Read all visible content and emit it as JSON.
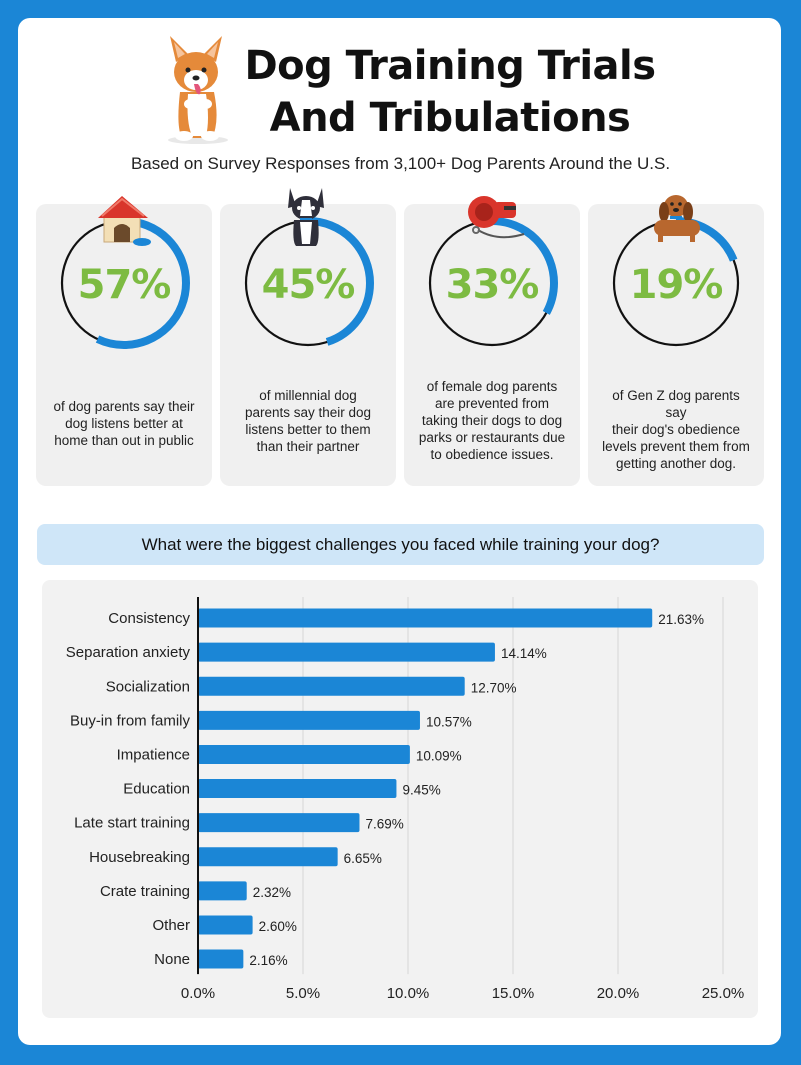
{
  "header": {
    "title_line1": "Dog Training Trials",
    "title_line2": "And Tribulations",
    "subtitle": "Based on Survey Responses from 3,100+ Dog Parents Around the U.S."
  },
  "stats": [
    {
      "value": "57%",
      "fraction": 0.57,
      "icon": "doghouse-icon",
      "desc": [
        "of dog parents say their",
        "dog listens better at",
        "home than out in public"
      ]
    },
    {
      "value": "45%",
      "fraction": 0.45,
      "icon": "boston-terrier-icon",
      "desc": [
        "of millennial dog",
        "parents say their dog",
        "listens better to them",
        "than their partner"
      ]
    },
    {
      "value": "33%",
      "fraction": 0.33,
      "icon": "leash-icon",
      "desc": [
        "of female dog parents",
        "are prevented from",
        "taking their dogs to dog",
        "parks or restaurants due",
        "to obedience issues."
      ]
    },
    {
      "value": "19%",
      "fraction": 0.19,
      "icon": "dachshund-icon",
      "desc": [
        "of Gen Z dog parents say",
        "their dog's obedience",
        "levels prevent them from",
        "getting another dog."
      ]
    }
  ],
  "colors": {
    "accent_blue": "#1b86d6",
    "stat_green": "#7dbb42",
    "question_bg": "#cfe6f8"
  },
  "question": "What were the biggest challenges you faced while training your dog?",
  "chart_data": {
    "type": "bar",
    "orientation": "horizontal",
    "categories": [
      "Consistency",
      "Separation anxiety",
      "Socialization",
      "Buy-in from family",
      "Impatience",
      "Education",
      "Late start training",
      "Housebreaking",
      "Crate training",
      "Other",
      "None"
    ],
    "values": [
      21.63,
      14.14,
      12.7,
      10.57,
      10.09,
      9.45,
      7.69,
      6.65,
      2.32,
      2.6,
      2.16
    ],
    "value_labels": [
      "21.63%",
      "14.14%",
      "12.70%",
      "10.57%",
      "10.09%",
      "9.45%",
      "7.69%",
      "6.65%",
      "2.32%",
      "2.60%",
      "2.16%"
    ],
    "xticks": [
      "0.0%",
      "5.0%",
      "10.0%",
      "15.0%",
      "20.0%",
      "25.0%"
    ],
    "xlim": [
      0,
      25
    ],
    "grid": true,
    "bar_color": "#1b86d6"
  }
}
